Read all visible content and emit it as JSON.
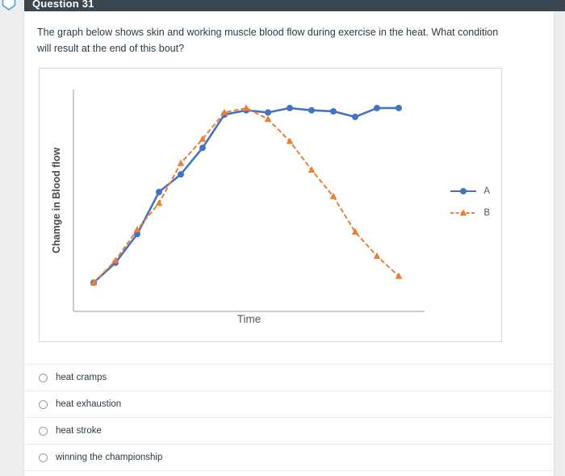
{
  "header": {
    "title": "Question 31"
  },
  "question": {
    "text": "The graph below shows skin and working muscle blood flow during exercise in the heat. What condition will result at the end of this bout?"
  },
  "chart_data": {
    "type": "line",
    "title": "",
    "x": [
      0,
      1,
      2,
      3,
      4,
      5,
      6,
      7,
      8,
      9,
      10,
      11,
      12,
      13,
      14
    ],
    "series": [
      {
        "name": "A",
        "color": "#4472c4",
        "line_style": "solid",
        "marker": "circle",
        "values": [
          13,
          22,
          35,
          54,
          62,
          74,
          89,
          91,
          90,
          92,
          91,
          90.5,
          88,
          92,
          92
        ]
      },
      {
        "name": "B",
        "color": "#ed7d31",
        "line_style": "dashed",
        "marker": "triangle",
        "values": [
          13,
          23,
          37,
          49,
          67,
          78,
          90,
          92,
          87,
          77,
          64,
          52,
          36,
          25,
          16
        ]
      }
    ],
    "xlabel": "Time",
    "ylabel": "Chamge in Blood flow",
    "ylim": [
      0,
      100
    ],
    "grid": false,
    "x_ticks_visible": false,
    "y_ticks_visible": false,
    "legend_position": "right"
  },
  "options": [
    {
      "label": "heat cramps",
      "selected": false
    },
    {
      "label": "heat exhaustion",
      "selected": false
    },
    {
      "label": "heat stroke",
      "selected": false
    },
    {
      "label": "winning the championship",
      "selected": false
    }
  ],
  "colors": {
    "header_bar": "#3a4750",
    "series_a": "#4472c4",
    "series_b": "#ed7d31",
    "text": "#2d3b45"
  }
}
